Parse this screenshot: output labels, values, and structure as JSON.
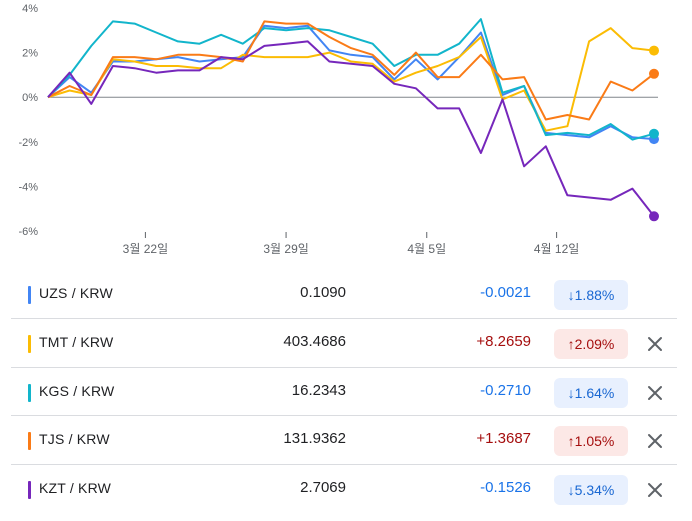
{
  "chart_data": {
    "type": "line",
    "x_ticks": [
      "3월 22일",
      "3월 29일",
      "4월 5일",
      "4월 12일"
    ],
    "y_ticks": [
      "4%",
      "2%",
      "0%",
      "-2%",
      "-4%",
      "-6%"
    ],
    "ylim": [
      -6,
      4
    ],
    "xlim": [
      0,
      28
    ],
    "x_tick_positions": [
      4.5,
      11,
      17.5,
      23.5
    ],
    "grid": false,
    "zero_line": true,
    "series": [
      {
        "name": "UZS / KRW",
        "color": "#4285f4",
        "x": [
          0,
          1,
          2,
          3,
          4,
          5,
          6,
          7,
          8,
          9,
          10,
          11,
          12,
          13,
          14,
          15,
          16,
          17,
          18,
          19,
          20,
          21,
          22,
          23,
          24,
          25,
          26,
          27,
          28
        ],
        "values": [
          0,
          0.9,
          0.2,
          1.6,
          1.6,
          1.7,
          1.8,
          1.6,
          1.7,
          1.8,
          3.2,
          3.1,
          3.2,
          2.1,
          1.9,
          1.8,
          0.8,
          1.7,
          0.8,
          1.8,
          2.9,
          0.1,
          0.5,
          -1.6,
          -1.7,
          -1.8,
          -1.3,
          -1.8,
          -1.88
        ]
      },
      {
        "name": "TMT / KRW",
        "color": "#fbbc04",
        "x": [
          0,
          1,
          2,
          3,
          4,
          5,
          6,
          7,
          8,
          9,
          10,
          11,
          12,
          13,
          14,
          15,
          16,
          17,
          18,
          19,
          20,
          21,
          22,
          23,
          24,
          25,
          26,
          27,
          28
        ],
        "values": [
          0,
          0.3,
          0.1,
          1.7,
          1.6,
          1.4,
          1.4,
          1.3,
          1.3,
          1.9,
          1.8,
          1.8,
          1.8,
          2.0,
          1.6,
          1.5,
          0.7,
          1.1,
          1.4,
          1.8,
          2.7,
          -0.1,
          0.3,
          -1.5,
          -1.3,
          2.5,
          3.1,
          2.2,
          2.09
        ]
      },
      {
        "name": "KGS / KRW",
        "color": "#12b5cb",
        "x": [
          0,
          1,
          2,
          3,
          4,
          5,
          6,
          7,
          8,
          9,
          10,
          11,
          12,
          13,
          14,
          15,
          16,
          17,
          18,
          19,
          20,
          21,
          22,
          23,
          24,
          25,
          26,
          27,
          28
        ],
        "values": [
          0,
          1.0,
          2.3,
          3.4,
          3.3,
          2.9,
          2.5,
          2.4,
          2.8,
          2.4,
          3.1,
          3.0,
          3.1,
          3.0,
          2.7,
          2.4,
          1.4,
          1.9,
          1.9,
          2.4,
          3.5,
          0.2,
          0.5,
          -1.7,
          -1.6,
          -1.7,
          -1.2,
          -1.9,
          -1.64
        ]
      },
      {
        "name": "TJS / KRW",
        "color": "#fa7b17",
        "x": [
          0,
          1,
          2,
          3,
          4,
          5,
          6,
          7,
          8,
          9,
          10,
          11,
          12,
          13,
          14,
          15,
          16,
          17,
          18,
          19,
          20,
          21,
          22,
          23,
          24,
          25,
          26,
          27,
          28
        ],
        "values": [
          0,
          0.5,
          0.1,
          1.8,
          1.8,
          1.7,
          1.9,
          1.9,
          1.8,
          1.6,
          3.4,
          3.3,
          3.3,
          2.7,
          2.2,
          1.9,
          1.0,
          2.0,
          0.9,
          0.9,
          1.9,
          0.8,
          0.9,
          -1.0,
          -0.8,
          -1.0,
          0.7,
          0.3,
          1.05
        ]
      },
      {
        "name": "KZT / KRW",
        "color": "#7627bb",
        "x": [
          0,
          1,
          2,
          3,
          4,
          5,
          6,
          7,
          8,
          9,
          10,
          11,
          12,
          13,
          14,
          15,
          16,
          17,
          18,
          19,
          20,
          21,
          22,
          23,
          24,
          25,
          26,
          27,
          28
        ],
        "values": [
          0,
          1.1,
          -0.3,
          1.4,
          1.3,
          1.1,
          1.2,
          1.2,
          1.8,
          1.7,
          2.3,
          2.4,
          2.5,
          1.6,
          1.5,
          1.4,
          0.6,
          0.4,
          -0.5,
          -0.5,
          -2.5,
          -0.1,
          -3.1,
          -2.2,
          -4.4,
          -4.5,
          -4.6,
          -4.1,
          -5.34
        ]
      }
    ]
  },
  "table": {
    "rows": [
      {
        "pair": "UZS / KRW",
        "color": "#4285f4",
        "price": "0.1090",
        "change": "-0.0021",
        "pct": "↓1.88%",
        "dir": "neg",
        "closable": false
      },
      {
        "pair": "TMT / KRW",
        "color": "#fbbc04",
        "price": "403.4686",
        "change": "+8.2659",
        "pct": "↑2.09%",
        "dir": "pos",
        "closable": true
      },
      {
        "pair": "KGS / KRW",
        "color": "#12b5cb",
        "price": "16.2343",
        "change": "-0.2710",
        "pct": "↓1.64%",
        "dir": "neg",
        "closable": true
      },
      {
        "pair": "TJS / KRW",
        "color": "#fa7b17",
        "price": "131.9362",
        "change": "+1.3687",
        "pct": "↑1.05%",
        "dir": "pos",
        "closable": true
      },
      {
        "pair": "KZT / KRW",
        "color": "#7627bb",
        "price": "2.7069",
        "change": "-0.1526",
        "pct": "↓5.34%",
        "dir": "neg",
        "closable": true
      }
    ]
  }
}
